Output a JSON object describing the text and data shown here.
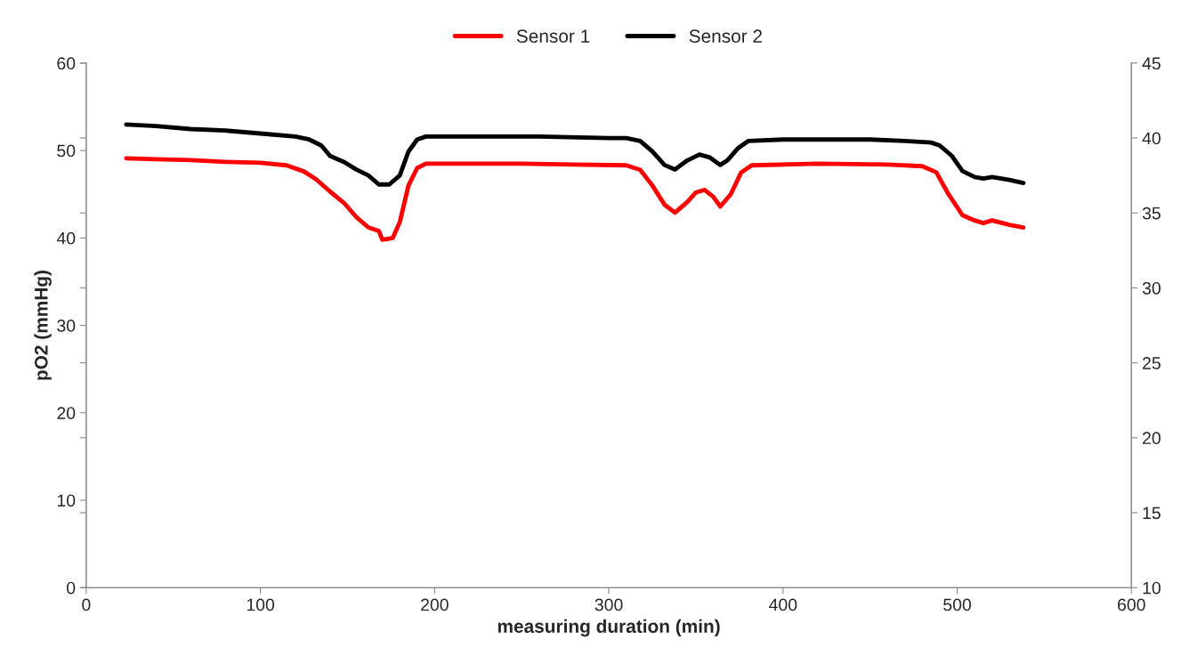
{
  "chart_data": {
    "type": "line",
    "xlabel": "measuring duration (min)",
    "ylabel": "pO2 (mmHg)",
    "xlim": [
      0,
      600
    ],
    "xticks": [
      0,
      100,
      200,
      300,
      400,
      500,
      600
    ],
    "ylim": [
      0,
      60
    ],
    "yticks": [
      0,
      10,
      20,
      30,
      40,
      50,
      60
    ],
    "y2lim": [
      10,
      45
    ],
    "y2ticks": [
      10,
      15,
      20,
      25,
      30,
      35,
      40,
      45
    ],
    "grid": false,
    "legend": "top",
    "marker": "none",
    "line_style": "solid",
    "series": [
      {
        "name": "Sensor 1",
        "color": "#ff0000",
        "x": [
          23,
          40,
          60,
          80,
          100,
          115,
          125,
          132,
          140,
          148,
          155,
          162,
          168,
          170,
          176,
          180,
          185,
          190,
          195,
          250,
          280,
          310,
          318,
          325,
          332,
          338,
          345,
          350,
          355,
          360,
          364,
          370,
          376,
          382,
          420,
          460,
          480,
          488,
          495,
          503,
          510,
          515,
          520,
          530,
          538
        ],
        "values": [
          49.1,
          49.0,
          48.9,
          48.7,
          48.6,
          48.3,
          47.6,
          46.7,
          45.3,
          44.0,
          42.4,
          41.2,
          40.8,
          39.8,
          40.0,
          41.8,
          46.0,
          48.0,
          48.5,
          48.5,
          48.4,
          48.3,
          47.8,
          46.0,
          43.8,
          42.9,
          44.1,
          45.2,
          45.5,
          44.7,
          43.6,
          45.0,
          47.5,
          48.3,
          48.5,
          48.4,
          48.2,
          47.5,
          45.0,
          42.6,
          42.0,
          41.7,
          42.0,
          41.5,
          41.2
        ]
      },
      {
        "name": "Sensor 2",
        "color": "#000000",
        "axis": "y2",
        "x": [
          23,
          40,
          60,
          80,
          100,
          120,
          128,
          135,
          140,
          148,
          155,
          162,
          168,
          174,
          180,
          185,
          190,
          195,
          260,
          300,
          310,
          318,
          325,
          332,
          338,
          345,
          352,
          358,
          364,
          368,
          374,
          380,
          400,
          420,
          450,
          470,
          485,
          490,
          497,
          503,
          510,
          515,
          520,
          530,
          538
        ],
        "values": [
          40.9,
          40.8,
          40.6,
          40.5,
          40.3,
          40.1,
          39.9,
          39.5,
          38.8,
          38.4,
          37.9,
          37.5,
          36.9,
          36.9,
          37.5,
          39.1,
          39.9,
          40.1,
          40.1,
          40.0,
          40.0,
          39.8,
          39.1,
          38.2,
          37.9,
          38.5,
          38.9,
          38.7,
          38.2,
          38.5,
          39.3,
          39.8,
          39.9,
          39.9,
          39.9,
          39.8,
          39.7,
          39.5,
          38.8,
          37.8,
          37.4,
          37.3,
          37.4,
          37.2,
          37.0
        ]
      }
    ]
  }
}
